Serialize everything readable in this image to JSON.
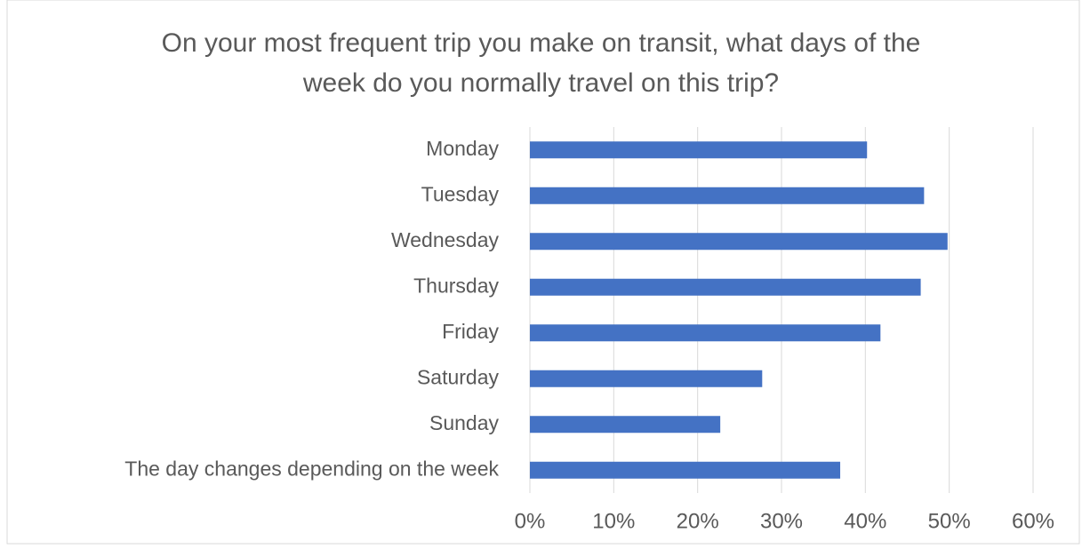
{
  "chart_data": {
    "type": "bar",
    "orientation": "horizontal",
    "title": "On your most frequent trip you make on transit, what days of the week do you normally travel on this trip?",
    "categories": [
      "Monday",
      "Tuesday",
      "Wednesday",
      "Thursday",
      "Friday",
      "Saturday",
      "Sunday",
      "The day changes depending on the week"
    ],
    "values": [
      40.2,
      47.0,
      49.8,
      46.6,
      41.8,
      27.7,
      22.7,
      37.0
    ],
    "color": "#4472c4",
    "xlim": [
      0,
      60
    ],
    "xticks": [
      {
        "value": 0,
        "label": "0%"
      },
      {
        "value": 10,
        "label": "10%"
      },
      {
        "value": 20,
        "label": "20%"
      },
      {
        "value": 30,
        "label": "30%"
      },
      {
        "value": 40,
        "label": "40%"
      },
      {
        "value": 50,
        "label": "50%"
      },
      {
        "value": 60,
        "label": "60%"
      }
    ],
    "grid": true
  }
}
